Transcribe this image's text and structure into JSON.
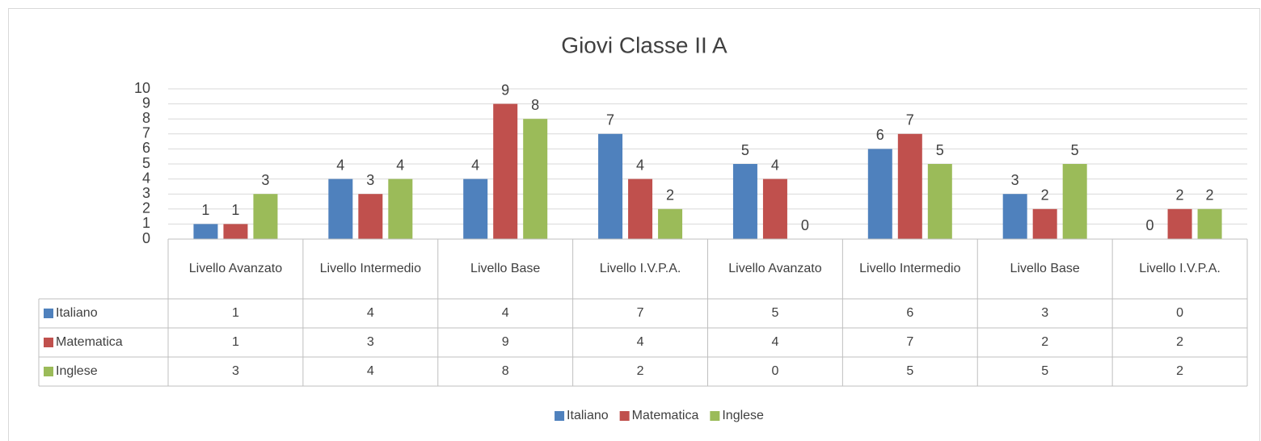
{
  "chart_data": {
    "type": "bar",
    "title": "Giovi Classe II A",
    "categories": [
      "Livello Avanzato",
      "Livello Intermedio",
      "Livello Base",
      "Livello I.V.P.A.",
      "Livello Avanzato",
      "Livello Intermedio",
      "Livello Base",
      "Livello I.V.P.A."
    ],
    "series": [
      {
        "name": "Italiano",
        "color": "#4f81bd",
        "values": [
          1,
          4,
          4,
          7,
          5,
          6,
          3,
          0
        ]
      },
      {
        "name": "Matematica",
        "color": "#c0504d",
        "values": [
          1,
          3,
          9,
          4,
          4,
          7,
          2,
          2
        ]
      },
      {
        "name": "Inglese",
        "color": "#9bbb59",
        "values": [
          3,
          4,
          8,
          2,
          0,
          5,
          5,
          2
        ]
      }
    ],
    "ylim": [
      0,
      10
    ],
    "yticks": [
      0,
      1,
      2,
      3,
      4,
      5,
      6,
      7,
      8,
      9,
      10
    ],
    "grid": true,
    "legend": "bottom",
    "data_table": true
  }
}
